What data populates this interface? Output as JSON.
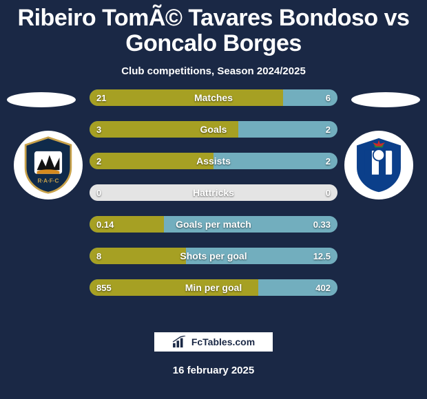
{
  "title": "Ribeiro TomÃ© Tavares Bondoso vs Goncalo Borges",
  "subtitle": "Club competitions, Season 2024/2025",
  "date": "16 february 2025",
  "brand": "FcTables.com",
  "colors": {
    "background": "#1a2845",
    "left_bar": "#a6a023",
    "right_bar": "#72aebe",
    "neutral_bar": "#e4e4e4",
    "text": "#ffffff"
  },
  "bars": [
    {
      "label": "Matches",
      "left_val": "21",
      "right_val": "6",
      "left_pct": 78,
      "right_pct": 22
    },
    {
      "label": "Goals",
      "left_val": "3",
      "right_val": "2",
      "left_pct": 60,
      "right_pct": 40
    },
    {
      "label": "Assists",
      "left_val": "2",
      "right_val": "2",
      "left_pct": 50,
      "right_pct": 50
    },
    {
      "label": "Hattricks",
      "left_val": "0",
      "right_val": "0",
      "left_pct": 50,
      "right_pct": 50,
      "neutral": true
    },
    {
      "label": "Goals per match",
      "left_val": "0.14",
      "right_val": "0.33",
      "left_pct": 30,
      "right_pct": 70
    },
    {
      "label": "Shots per goal",
      "left_val": "8",
      "right_val": "12.5",
      "left_pct": 39,
      "right_pct": 61
    },
    {
      "label": "Min per goal",
      "left_val": "855",
      "right_val": "402",
      "left_pct": 68,
      "right_pct": 32
    }
  ]
}
